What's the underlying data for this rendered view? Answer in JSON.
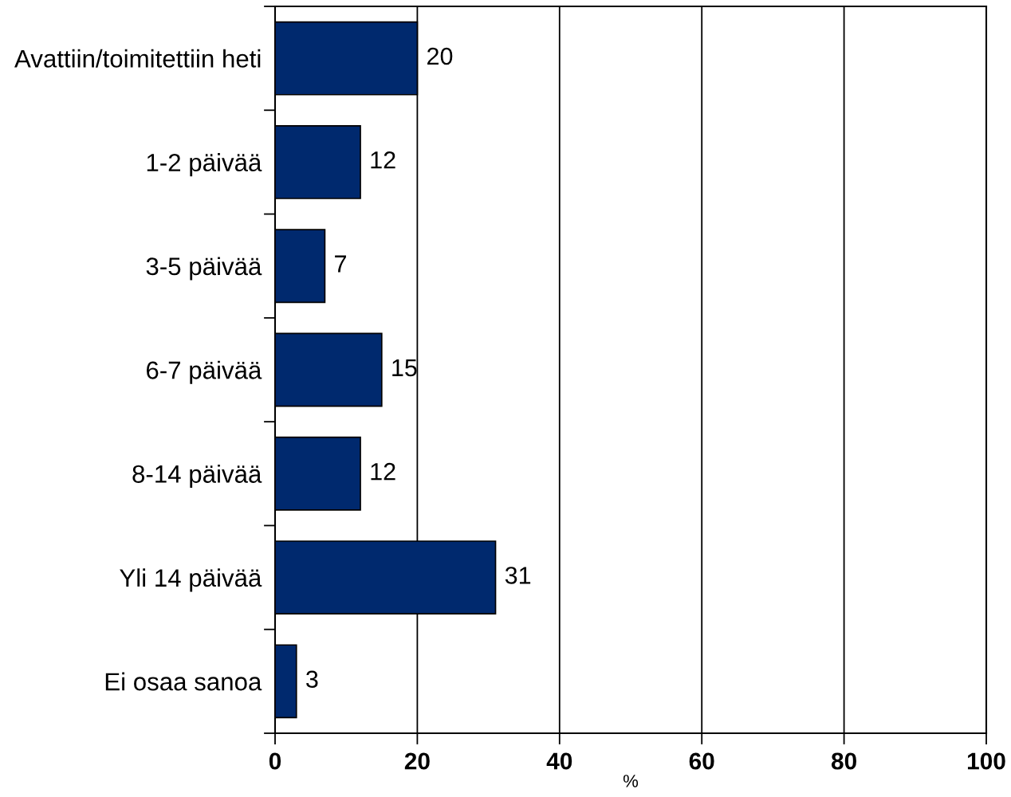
{
  "chart_data": {
    "type": "bar",
    "orientation": "horizontal",
    "categories": [
      "Avattiin/toimitettiin heti",
      "1-2 päivää",
      "3-5 päivää",
      "6-7 päivää",
      "8-14 päivää",
      "Yli 14 päivää",
      "Ei osaa sanoa"
    ],
    "values": [
      20,
      12,
      7,
      15,
      12,
      31,
      3
    ],
    "color": "#00296e",
    "xlim": [
      0,
      100
    ],
    "xticks": [
      0,
      20,
      40,
      60,
      80,
      100
    ],
    "xlabel": "%",
    "grid": "x",
    "data_labels": true
  }
}
